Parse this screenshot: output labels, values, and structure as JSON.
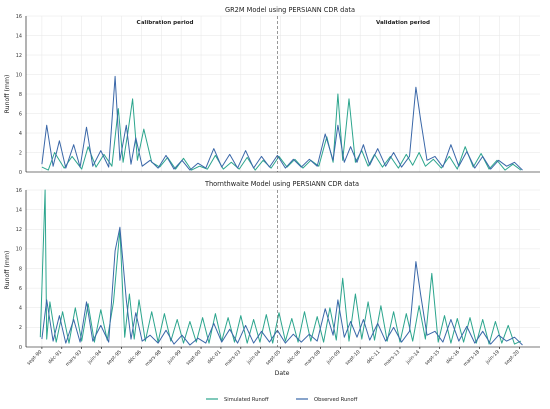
{
  "colors": {
    "simulated": "#2ca58d",
    "observed": "#3a67a8"
  },
  "legend": {
    "simulated": "Simulated Runoff",
    "observed": "Observed Runoff"
  },
  "chart_data": [
    {
      "type": "line",
      "title": "GR2M Model using PERSIANN CDR data",
      "ylabel": "Runoff (mm)",
      "xlabel": "",
      "ylim": [
        0,
        16
      ],
      "yticks": [
        0,
        2,
        4,
        6,
        8,
        10,
        12,
        14,
        16
      ],
      "period_labels": [
        "Calibration period",
        "Validation period"
      ],
      "divider_x": 2005.5,
      "xlim": [
        1989.7,
        2022.0
      ],
      "grid": true,
      "series": [
        {
          "name": "Simulated Runoff",
          "key": "simulated",
          "x": [
            1990.7,
            1991.1,
            1991.5,
            1992.1,
            1992.6,
            1993.2,
            1993.6,
            1994.1,
            1994.6,
            1995.1,
            1995.5,
            1995.8,
            1996.1,
            1996.4,
            1996.7,
            1997.1,
            1997.6,
            1998.1,
            1998.6,
            1999.1,
            1999.6,
            2000.1,
            2000.6,
            2001.1,
            2001.6,
            2002.1,
            2002.6,
            2003.1,
            2003.6,
            2004.1,
            2004.6,
            2005.1,
            2005.6,
            2006.1,
            2006.6,
            2007.1,
            2007.6,
            2008.1,
            2008.6,
            2009.0,
            2009.3,
            2009.6,
            2010.0,
            2010.4,
            2010.8,
            2011.2,
            2011.6,
            2012.1,
            2012.6,
            2013.1,
            2013.6,
            2014.0,
            2014.4,
            2014.8,
            2015.3,
            2015.8,
            2016.3,
            2016.8,
            2017.3,
            2017.8,
            2018.3,
            2018.8,
            2019.3,
            2019.8,
            2020.3,
            2020.8
          ],
          "values": [
            0.5,
            0.2,
            2.0,
            0.4,
            1.6,
            0.3,
            2.6,
            0.5,
            1.8,
            0.6,
            6.5,
            1.0,
            4.0,
            7.5,
            1.2,
            4.4,
            1.0,
            0.5,
            1.5,
            0.3,
            1.4,
            0.2,
            0.6,
            0.3,
            1.7,
            0.3,
            1.0,
            0.3,
            1.5,
            0.2,
            1.2,
            0.4,
            1.6,
            0.5,
            1.3,
            0.4,
            1.2,
            0.6,
            3.6,
            1.0,
            8.0,
            1.2,
            7.5,
            1.0,
            2.2,
            0.6,
            1.8,
            0.5,
            1.6,
            0.4,
            1.8,
            0.7,
            2.0,
            0.6,
            1.3,
            0.4,
            1.6,
            0.3,
            2.6,
            0.5,
            1.9,
            0.3,
            1.2,
            0.2,
            0.8,
            0.2
          ]
        },
        {
          "name": "Observed Runoff",
          "key": "observed",
          "x": [
            1990.7,
            1991.0,
            1991.4,
            1991.8,
            1992.2,
            1992.7,
            1993.1,
            1993.5,
            1993.9,
            1994.4,
            1994.9,
            1995.3,
            1995.6,
            1996.0,
            1996.3,
            1996.6,
            1997.0,
            1997.5,
            1998.0,
            1998.5,
            1999.0,
            1999.5,
            2000.0,
            2000.5,
            2001.0,
            2001.5,
            2002.0,
            2002.5,
            2003.0,
            2003.5,
            2004.0,
            2004.5,
            2005.0,
            2005.5,
            2006.0,
            2006.5,
            2007.0,
            2007.5,
            2008.0,
            2008.5,
            2009.0,
            2009.3,
            2009.7,
            2010.1,
            2010.5,
            2010.9,
            2011.3,
            2011.8,
            2012.3,
            2012.8,
            2013.3,
            2013.8,
            2014.2,
            2014.5,
            2014.9,
            2015.4,
            2015.9,
            2016.4,
            2016.9,
            2017.4,
            2017.9,
            2018.4,
            2018.9,
            2019.4,
            2019.9,
            2020.4,
            2020.9
          ],
          "values": [
            0.8,
            4.8,
            0.6,
            3.2,
            0.4,
            2.8,
            0.5,
            4.6,
            0.6,
            2.2,
            0.5,
            9.8,
            1.2,
            4.8,
            0.8,
            3.5,
            0.6,
            1.2,
            0.4,
            1.7,
            0.3,
            1.2,
            0.2,
            0.9,
            0.4,
            2.4,
            0.5,
            1.8,
            0.4,
            2.2,
            0.4,
            1.6,
            0.5,
            1.7,
            0.4,
            1.3,
            0.5,
            1.3,
            0.6,
            3.9,
            1.2,
            4.8,
            1.0,
            2.6,
            1.0,
            2.8,
            0.7,
            2.4,
            0.6,
            2.0,
            0.5,
            1.6,
            8.7,
            5.3,
            1.2,
            1.6,
            0.5,
            2.8,
            0.6,
            2.1,
            0.4,
            1.6,
            0.3,
            1.2,
            0.6,
            1.0,
            0.2
          ]
        }
      ]
    },
    {
      "type": "line",
      "title": "Thornthwaite Model using PERSIANN CDR data",
      "ylabel": "Runoff (mm)",
      "xlabel": "Date",
      "ylim": [
        0,
        16
      ],
      "yticks": [
        0,
        2,
        4,
        6,
        8,
        10,
        12,
        14,
        16
      ],
      "divider_x": 2005.5,
      "xlim": [
        1989.7,
        2022.0
      ],
      "xtick_labels": [
        {
          "x": 1990.7,
          "label": "sept-90"
        },
        {
          "x": 1991.95,
          "label": "déc-91"
        },
        {
          "x": 1993.2,
          "label": "mars-93"
        },
        {
          "x": 1994.45,
          "label": "juin-94"
        },
        {
          "x": 1995.7,
          "label": "sept-95"
        },
        {
          "x": 1996.95,
          "label": "déc-96"
        },
        {
          "x": 1998.2,
          "label": "mars-98"
        },
        {
          "x": 1999.45,
          "label": "juin-99"
        },
        {
          "x": 2000.7,
          "label": "sept-00"
        },
        {
          "x": 2001.95,
          "label": "déc-01"
        },
        {
          "x": 2003.2,
          "label": "mars-03"
        },
        {
          "x": 2004.45,
          "label": "juin-04"
        },
        {
          "x": 2005.7,
          "label": "sept-05"
        },
        {
          "x": 2006.95,
          "label": "déc-06"
        },
        {
          "x": 2008.2,
          "label": "mars-08"
        },
        {
          "x": 2009.45,
          "label": "juin-09"
        },
        {
          "x": 2010.7,
          "label": "sept-10"
        },
        {
          "x": 2011.95,
          "label": "déc-11"
        },
        {
          "x": 2013.2,
          "label": "mars-13"
        },
        {
          "x": 2014.45,
          "label": "juin-14"
        },
        {
          "x": 2015.7,
          "label": "sept-15"
        },
        {
          "x": 2016.95,
          "label": "déc-16"
        },
        {
          "x": 2018.2,
          "label": "mars-18"
        },
        {
          "x": 2019.45,
          "label": "juin-19"
        },
        {
          "x": 2020.7,
          "label": "sept-20"
        }
      ],
      "grid": true,
      "series": [
        {
          "name": "Simulated Runoff",
          "key": "simulated",
          "x": [
            1990.6,
            1990.9,
            1991.0,
            1991.2,
            1991.6,
            1992.0,
            1992.4,
            1992.8,
            1993.2,
            1993.6,
            1994.0,
            1994.4,
            1994.8,
            1995.2,
            1995.6,
            1995.9,
            1996.2,
            1996.5,
            1996.8,
            1997.2,
            1997.6,
            1998.0,
            1998.4,
            1998.8,
            1999.2,
            1999.6,
            2000.0,
            2000.4,
            2000.8,
            2001.2,
            2001.6,
            2002.0,
            2002.4,
            2002.8,
            2003.2,
            2003.6,
            2004.0,
            2004.4,
            2004.8,
            2005.2,
            2005.6,
            2006.0,
            2006.4,
            2006.8,
            2007.2,
            2007.6,
            2008.0,
            2008.4,
            2008.8,
            2009.2,
            2009.6,
            2010.0,
            2010.4,
            2010.8,
            2011.2,
            2011.6,
            2012.0,
            2012.4,
            2012.8,
            2013.2,
            2013.6,
            2014.0,
            2014.4,
            2014.8,
            2015.2,
            2015.6,
            2016.0,
            2016.4,
            2016.8,
            2017.2,
            2017.6,
            2018.0,
            2018.4,
            2018.8,
            2019.2,
            2019.6,
            2020.0,
            2020.4,
            2020.8
          ],
          "values": [
            1.0,
            16.0,
            0.8,
            4.6,
            0.5,
            3.6,
            0.4,
            4.0,
            0.6,
            4.4,
            0.5,
            3.8,
            0.7,
            4.6,
            12.0,
            1.0,
            5.4,
            0.8,
            4.8,
            0.6,
            3.6,
            0.5,
            3.4,
            0.6,
            2.8,
            0.4,
            2.6,
            0.5,
            3.0,
            0.4,
            3.4,
            0.6,
            3.0,
            0.5,
            3.2,
            0.4,
            2.8,
            0.5,
            3.3,
            0.4,
            3.5,
            0.6,
            2.9,
            0.5,
            3.6,
            0.6,
            3.1,
            0.5,
            4.0,
            0.7,
            7.0,
            0.6,
            5.4,
            0.8,
            4.6,
            0.7,
            4.2,
            0.6,
            3.6,
            0.5,
            3.4,
            0.6,
            4.2,
            0.8,
            7.5,
            0.5,
            3.2,
            0.4,
            2.9,
            0.5,
            3.0,
            0.4,
            2.8,
            0.3,
            2.6,
            0.4,
            2.2,
            0.3,
            0.6
          ]
        },
        {
          "name": "Observed Runoff",
          "key": "observed",
          "x": [
            1990.7,
            1991.0,
            1991.4,
            1991.8,
            1992.2,
            1992.7,
            1993.1,
            1993.5,
            1993.9,
            1994.4,
            1994.9,
            1995.3,
            1995.6,
            1996.0,
            1996.3,
            1996.6,
            1997.0,
            1997.5,
            1998.0,
            1998.5,
            1999.0,
            1999.5,
            2000.0,
            2000.5,
            2001.0,
            2001.5,
            2002.0,
            2002.5,
            2003.0,
            2003.5,
            2004.0,
            2004.5,
            2005.0,
            2005.5,
            2006.0,
            2006.5,
            2007.0,
            2007.5,
            2008.0,
            2008.5,
            2009.0,
            2009.3,
            2009.7,
            2010.1,
            2010.5,
            2010.9,
            2011.3,
            2011.8,
            2012.3,
            2012.8,
            2013.3,
            2013.8,
            2014.2,
            2014.5,
            2014.9,
            2015.4,
            2015.9,
            2016.4,
            2016.9,
            2017.4,
            2017.9,
            2018.4,
            2018.9,
            2019.4,
            2019.9,
            2020.4,
            2020.9
          ],
          "values": [
            0.8,
            4.8,
            0.6,
            3.2,
            0.4,
            2.8,
            0.5,
            4.6,
            0.6,
            2.2,
            0.5,
            9.8,
            12.2,
            4.8,
            0.8,
            3.5,
            0.6,
            1.2,
            0.4,
            1.7,
            0.3,
            1.2,
            0.2,
            0.9,
            0.4,
            2.4,
            0.5,
            1.8,
            0.4,
            2.2,
            0.4,
            1.6,
            0.5,
            1.7,
            0.4,
            1.3,
            0.5,
            1.3,
            0.6,
            3.9,
            1.2,
            4.8,
            1.0,
            2.6,
            1.0,
            2.8,
            0.7,
            2.4,
            0.6,
            2.0,
            0.5,
            1.6,
            8.7,
            5.3,
            1.2,
            1.6,
            0.5,
            2.8,
            0.6,
            2.1,
            0.4,
            1.6,
            0.3,
            1.2,
            0.6,
            1.0,
            0.2
          ]
        }
      ]
    }
  ]
}
